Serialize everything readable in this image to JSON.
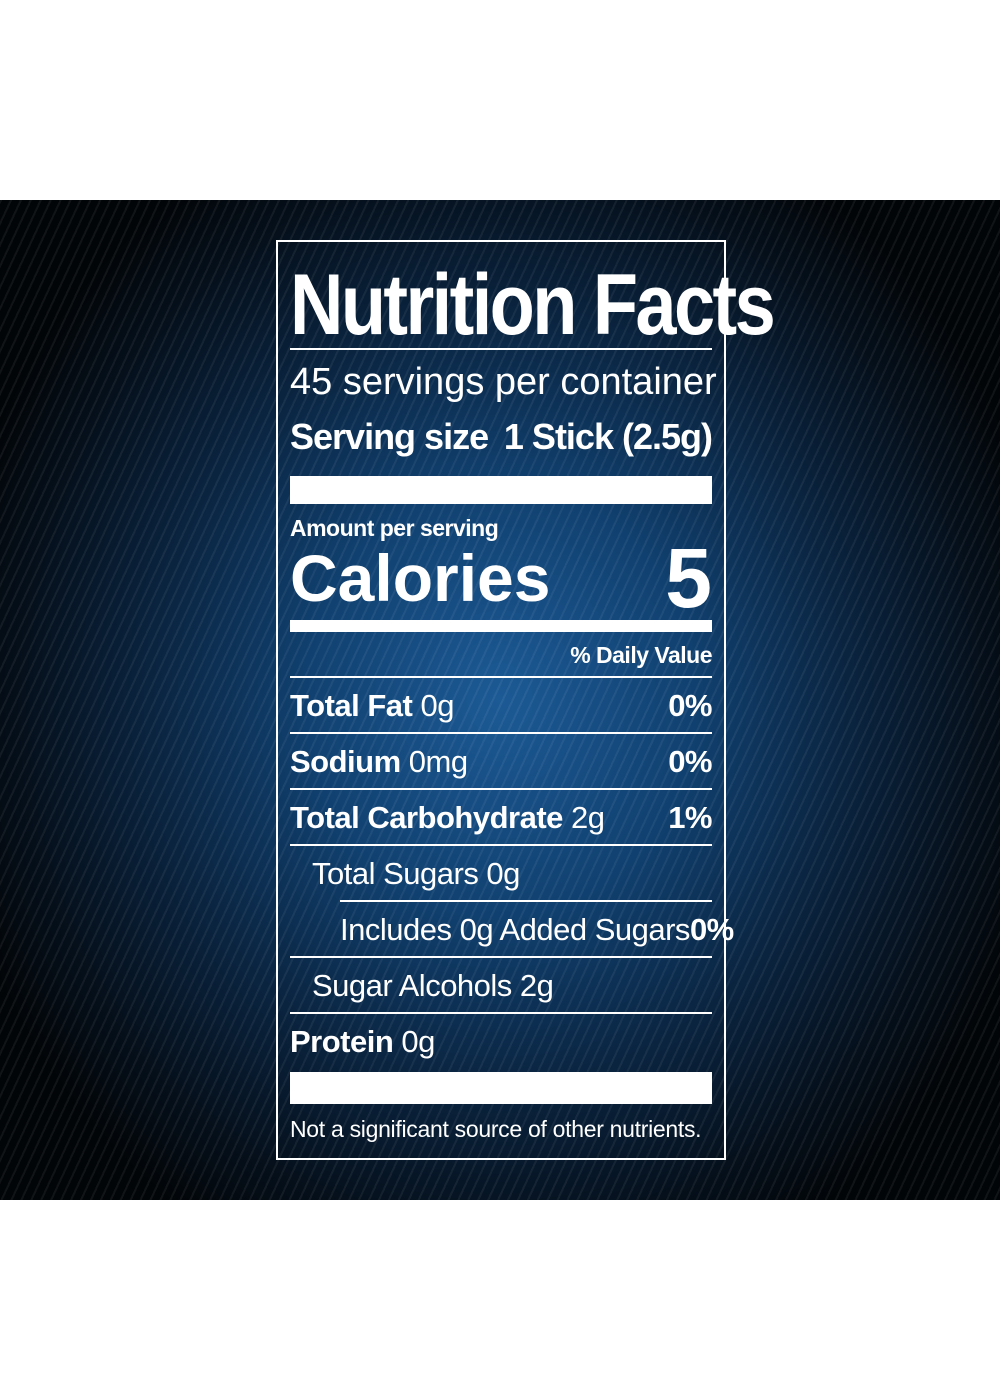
{
  "label": {
    "title": "Nutrition Facts",
    "servings_per_container": "45 servings per container",
    "serving_size_label": "Serving size",
    "serving_size_value": "1 Stick (2.5g)",
    "amount_per_serving": "Amount per serving",
    "calories_label": "Calories",
    "calories_value": "5",
    "daily_value_header": "% Daily Value",
    "rows": [
      {
        "name": "Total Fat",
        "amount": "0g",
        "dv": "0%"
      },
      {
        "name": "Sodium",
        "amount": "0mg",
        "dv": "0%"
      },
      {
        "name": "Total Carbohydrate",
        "amount": "2g",
        "dv": "1%"
      },
      {
        "text": "Total Sugars 0g",
        "dv": ""
      },
      {
        "text": "Includes 0g Added Sugars",
        "dv": "0%"
      },
      {
        "text": "Sugar Alcohols 2g",
        "dv": ""
      },
      {
        "name": "Protein",
        "amount": "0g",
        "dv": ""
      }
    ],
    "footnote": "Not a significant source of other nutrients."
  },
  "colors": {
    "text": "#ffffff",
    "background_center": "#1c5a95",
    "background_edge": "#020508"
  }
}
